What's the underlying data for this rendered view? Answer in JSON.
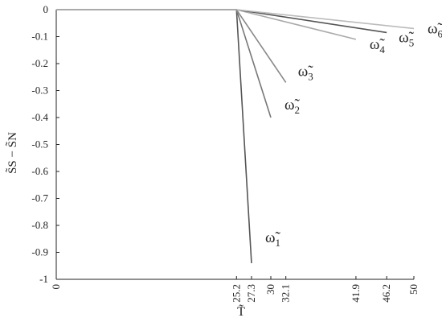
{
  "chart_data": {
    "type": "line",
    "xlabel": "T̃",
    "ylabel": "S̃S − S̃N",
    "xlim": [
      0,
      50
    ],
    "ylim": [
      -1,
      0
    ],
    "xticks": [
      0,
      25.2,
      27.3,
      30,
      32.1,
      41.9,
      46.2,
      50
    ],
    "yticks": [
      0,
      -0.1,
      -0.2,
      -0.3,
      -0.4,
      -0.5,
      -0.6,
      -0.7,
      -0.8,
      -0.9,
      -1
    ],
    "series": [
      {
        "name": "ω̃1",
        "color": "#555555",
        "x": [
          0,
          25.2,
          27.3
        ],
        "values": [
          0,
          0,
          -0.94
        ]
      },
      {
        "name": "ω̃2",
        "color": "#777777",
        "x": [
          0,
          25.2,
          30
        ],
        "values": [
          0,
          0,
          -0.4
        ]
      },
      {
        "name": "ω̃3",
        "color": "#888888",
        "x": [
          0,
          25.2,
          32.1
        ],
        "values": [
          0,
          0,
          -0.27
        ]
      },
      {
        "name": "ω̃4",
        "color": "#aaaaaa",
        "x": [
          0,
          25.2,
          41.9
        ],
        "values": [
          0,
          0,
          -0.11
        ]
      },
      {
        "name": "ω̃5",
        "color": "#555555",
        "x": [
          0,
          25.2,
          46.2
        ],
        "values": [
          0,
          0,
          -0.085
        ]
      },
      {
        "name": "ω̃6",
        "color": "#bbbbbb",
        "x": [
          0,
          25.2,
          50
        ],
        "values": [
          0,
          0,
          -0.07
        ]
      }
    ]
  }
}
